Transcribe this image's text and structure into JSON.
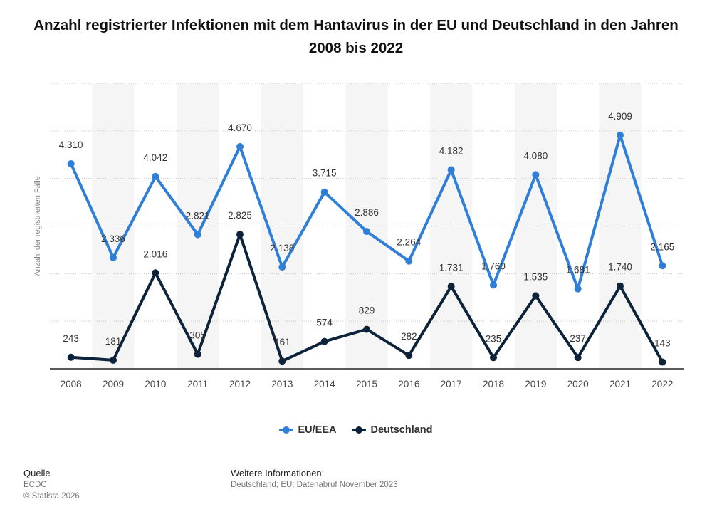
{
  "colors": {
    "eu": "#2f7ed8",
    "de": "#0d233a",
    "grid": "#c8c8c8",
    "band": "#f5f5f5",
    "axis": "#222222"
  },
  "chart_data": {
    "type": "line",
    "title": "Anzahl registrierter Infektionen mit dem Hantavirus in der EU und Deutschland in den Jahren 2008 bis 2022",
    "ylabel": "Anzahl der registrierten Fälle",
    "xlabel": "",
    "categories": [
      "2008",
      "2009",
      "2010",
      "2011",
      "2012",
      "2013",
      "2014",
      "2015",
      "2016",
      "2017",
      "2018",
      "2019",
      "2020",
      "2021",
      "2022"
    ],
    "ylim": [
      0,
      6000
    ],
    "grid": true,
    "legend_position": "bottom-center",
    "series": [
      {
        "name": "EU/EEA",
        "color": "#2f7ed8",
        "values": [
          4310,
          2336,
          4042,
          2821,
          4670,
          2138,
          3715,
          2886,
          2264,
          4182,
          1760,
          4080,
          1681,
          4909,
          2165
        ],
        "labels": [
          "4.310",
          "2.336",
          "4.042",
          "2.821",
          "4.670",
          "2.138",
          "3.715",
          "2.886",
          "2.264",
          "4.182",
          "1.760",
          "4.080",
          "1.681",
          "4.909",
          "2.165"
        ]
      },
      {
        "name": "Deutschland",
        "color": "#0d233a",
        "values": [
          243,
          181,
          2016,
          305,
          2825,
          161,
          574,
          829,
          282,
          1731,
          235,
          1535,
          237,
          1740,
          143
        ],
        "labels": [
          "243",
          "181",
          "2.016",
          "305",
          "2.825",
          "161",
          "574",
          "829",
          "282",
          "1.731",
          "235",
          "1.535",
          "237",
          "1.740",
          "143"
        ]
      }
    ]
  },
  "footer": {
    "source_heading": "Quelle",
    "source_name": "ECDC",
    "copyright": "© Statista 2026",
    "info_heading": "Weitere Informationen:",
    "info_text": "Deutschland; EU; Datenabruf November 2023"
  }
}
